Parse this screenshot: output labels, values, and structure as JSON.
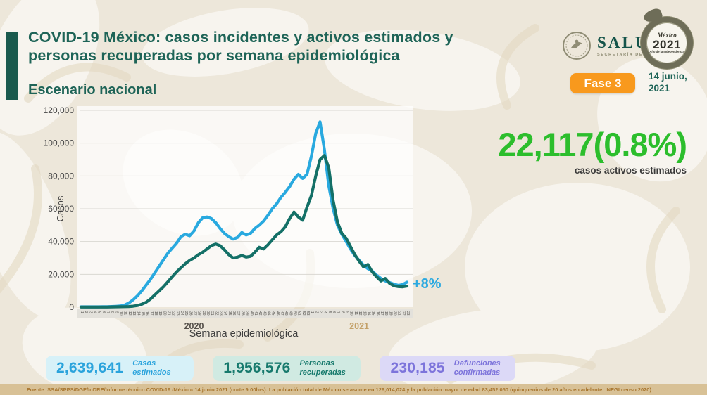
{
  "header": {
    "title_line1": "COVID-19 México: casos incidentes y activos estimados y",
    "title_line2": "personas recuperadas por semana epidemiológica",
    "subtitle": "Escenario nacional",
    "salud_logo": {
      "name": "SALUD",
      "sub": "SECRETARÍA DE SALUD"
    },
    "mexico2021_logo": {
      "script": "México",
      "year": "2021",
      "sub": "Año de la Independencia"
    },
    "phase_badge": "Fase 3",
    "date": "14 junio,\n2021"
  },
  "highlight": {
    "value": "22,117(0.8%)",
    "caption": "casos activos estimados",
    "color": "#2CBE2C"
  },
  "annotation": {
    "label": "+8%",
    "color": "#2BA9E0"
  },
  "chart_data": {
    "type": "line",
    "title": "",
    "xlabel": "Semana epidemiológica",
    "ylabel": "Casos",
    "ylim": [
      0,
      120000
    ],
    "grid": true,
    "legend": "none",
    "y_ticks": [
      "0",
      "20,000",
      "40,000",
      "60,000",
      "80,000",
      "100,000",
      "120,000"
    ],
    "x_groups": [
      {
        "label": "2020",
        "weeks": 53,
        "color": "#55504A"
      },
      {
        "label": "2021",
        "weeks": 23,
        "color": "#C3A067"
      }
    ],
    "series": [
      {
        "name": "casos incidentes y activos estimados",
        "color": "#29A9DF",
        "values": [
          200,
          200,
          200,
          200,
          200,
          300,
          300,
          400,
          500,
          700,
          1200,
          2500,
          4500,
          7000,
          10000,
          13500,
          17000,
          21000,
          25000,
          29000,
          33000,
          36000,
          39000,
          43000,
          44500,
          43500,
          46500,
          51500,
          54500,
          55000,
          54000,
          51500,
          48000,
          45000,
          43000,
          41500,
          42500,
          45500,
          44000,
          45000,
          48000,
          50000,
          52500,
          56000,
          60000,
          63000,
          67000,
          70000,
          73500,
          78000,
          81000,
          78500,
          81000,
          92000,
          106000,
          113000,
          96000,
          74000,
          60000,
          50000,
          44500,
          40000,
          35500,
          31500,
          28500,
          25500,
          23500,
          22000,
          19500,
          17500,
          16000,
          15000,
          14000,
          13300,
          13800,
          15200
        ]
      },
      {
        "name": "personas recuperadas",
        "color": "#147067",
        "values": [
          100,
          100,
          100,
          100,
          100,
          100,
          100,
          150,
          200,
          250,
          300,
          400,
          600,
          1000,
          1800,
          3000,
          5000,
          7500,
          10000,
          12500,
          15500,
          18500,
          21500,
          24000,
          26500,
          28500,
          30000,
          32000,
          33500,
          35500,
          37500,
          38500,
          37500,
          35000,
          32000,
          30000,
          30500,
          31500,
          30500,
          31000,
          33500,
          36500,
          35500,
          38000,
          41000,
          44000,
          46000,
          49000,
          54000,
          58000,
          55000,
          53000,
          61000,
          68000,
          80000,
          90000,
          92500,
          85000,
          65000,
          52000,
          45000,
          42000,
          37000,
          32000,
          28000,
          24500,
          26000,
          21500,
          18500,
          16000,
          17500,
          14500,
          13000,
          12500,
          12400,
          12800
        ]
      }
    ]
  },
  "stats": [
    {
      "value": "2,639,641",
      "label": "Casos estimados",
      "fg": "#2AA3DC",
      "bg": "#D7F1F8"
    },
    {
      "value": "1,956,576",
      "label": "Personas recuperadas",
      "fg": "#177A6D",
      "bg": "#D0EAE2"
    },
    {
      "value": "230,185",
      "label": "Defunciones confirmadas",
      "fg": "#7D74DB",
      "bg": "#DCD9F7"
    }
  ],
  "footer": {
    "source": "Fuente: SSA/SPPS/DGE/InDRE/Informe técnico.COVID-19 /México- 14 junio 2021 (corte 9:00hrs). La población total de México se asume en 126,014,024 y la población mayor de edad 83,452,050 (quinquenios de 20 años en adelante, INEGI censo 2020)"
  }
}
